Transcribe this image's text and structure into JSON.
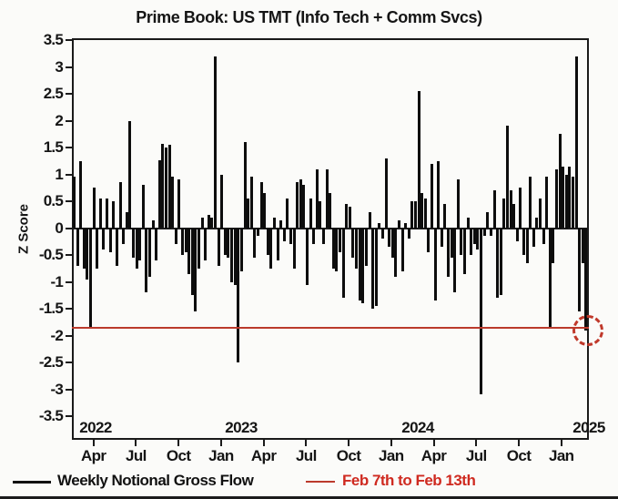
{
  "title": "Prime Book: US TMT (Info Tech + Comm Svcs)",
  "y_axis": {
    "label": "Z Score",
    "tick_labels": [
      "3.5",
      "3",
      "2.5",
      "2",
      "1.5",
      "1",
      "0.5",
      "0",
      "-0.5",
      "-1",
      "-1.5",
      "-2",
      "-2.5",
      "-3",
      "-3.5"
    ]
  },
  "x_axis": {
    "month_tick_labels": [
      "Apr",
      "Jul",
      "Oct",
      "Jan",
      "Apr",
      "Jul",
      "Oct",
      "Jan",
      "Apr",
      "Jul",
      "Oct",
      "Jan"
    ],
    "year_labels": [
      "2022",
      "2023",
      "2024",
      "2025"
    ]
  },
  "legend": {
    "series_label": "Weekly Notional Gross Flow",
    "series_color": "#111111",
    "reference_label": "Feb 7th to Feb 13th",
    "reference_color": "#cf2a20"
  },
  "colors": {
    "bar": "#0d0d0d",
    "reference_line": "#bb3a2c",
    "highlight_circle": "#c0392b"
  },
  "chart_data": {
    "type": "bar",
    "title": "Prime Book: US TMT (Info Tech + Comm Svcs)",
    "xlabel": "",
    "ylabel": "Z Score",
    "ylim": [
      -3.5,
      3.5
    ],
    "grid": false,
    "x_unit": "weekly",
    "x_range_shown": "Feb 2022 - Feb 2025",
    "x_tick_labels": [
      "Apr",
      "Jul",
      "Oct",
      "Jan",
      "Apr",
      "Jul",
      "Oct",
      "Jan",
      "Apr",
      "Jul",
      "Oct",
      "Jan"
    ],
    "year_labels": [
      "2022",
      "2023",
      "2024",
      "2025"
    ],
    "legend_position": "bottom-left",
    "series": [
      {
        "name": "Weekly Notional Gross Flow",
        "values": [
          0.95,
          -0.7,
          1.25,
          -0.75,
          -0.95,
          -1.85,
          0.75,
          -0.75,
          0.55,
          -0.4,
          0.55,
          -0.45,
          0.5,
          -0.7,
          0.85,
          -0.3,
          0.3,
          2.0,
          -0.55,
          -0.75,
          -0.6,
          0.8,
          -1.2,
          -0.9,
          0.15,
          -0.6,
          1.27,
          1.57,
          1.5,
          1.55,
          0.95,
          -0.3,
          0.9,
          -0.5,
          -0.45,
          -0.85,
          -1.25,
          -1.55,
          -0.75,
          0.2,
          -0.6,
          0.25,
          0.2,
          3.2,
          -0.7,
          1.0,
          -0.5,
          -0.55,
          -1.0,
          -1.05,
          -2.5,
          -0.8,
          1.6,
          0.55,
          0.95,
          -0.55,
          -0.15,
          0.85,
          0.65,
          -0.5,
          -0.75,
          0.2,
          -0.6,
          0.15,
          -0.25,
          0.55,
          -0.3,
          -0.75,
          0.85,
          0.9,
          0.8,
          -1.05,
          0.55,
          -0.3,
          1.1,
          0.5,
          -0.3,
          1.1,
          0.65,
          -0.75,
          -0.8,
          -0.45,
          -1.3,
          0.45,
          0.4,
          -0.55,
          -0.75,
          -1.35,
          -1.4,
          -0.7,
          0.3,
          -1.5,
          -1.45,
          0.1,
          -0.2,
          1.3,
          -0.35,
          -0.55,
          -0.9,
          0.15,
          -0.8,
          0.1,
          -0.2,
          0.5,
          0.5,
          2.55,
          0.65,
          0.55,
          -0.45,
          1.2,
          -1.35,
          1.25,
          -0.35,
          0.45,
          -0.9,
          -0.55,
          -1.2,
          0.9,
          -0.5,
          -0.85,
          0.2,
          -0.5,
          -0.3,
          -0.4,
          -3.1,
          -0.15,
          0.3,
          -0.15,
          0.7,
          -1.3,
          -1.25,
          0.55,
          1.9,
          0.7,
          0.45,
          -0.25,
          0.75,
          -0.5,
          -0.65,
          0.95,
          -0.35,
          0.2,
          0.55,
          -0.3,
          0.95,
          -1.85,
          -0.65,
          1.1,
          1.75,
          1.15,
          1.0,
          1.15,
          0.95,
          3.2,
          -1.55,
          -0.65,
          -1.9
        ]
      }
    ],
    "reference_line": {
      "name": "Feb 7th to Feb 13th",
      "value": -1.85,
      "style": "solid red horizontal line"
    },
    "annotation": {
      "type": "dashed-circle",
      "position": "last bar at right axis",
      "value": -1.9
    }
  }
}
